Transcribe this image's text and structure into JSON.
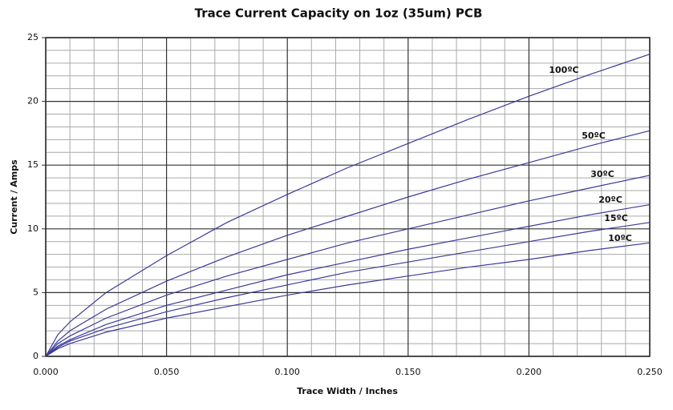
{
  "chart_data": {
    "type": "line",
    "title": "Trace Current Capacity on 1oz (35um) PCB",
    "x_label": "Trace Width / Inches",
    "y_label": "Current  / Amps",
    "x": [
      0,
      0.005,
      0.01,
      0.025,
      0.05,
      0.075,
      0.1,
      0.125,
      0.15,
      0.175,
      0.2,
      0.225,
      0.25
    ],
    "series": [
      {
        "name": "100ºC",
        "color": "#3a3a9a",
        "values": [
          0,
          1.7,
          2.7,
          5.0,
          7.9,
          10.5,
          12.7,
          14.8,
          16.7,
          18.6,
          20.4,
          22.1,
          23.7
        ]
      },
      {
        "name": "50ºC",
        "color": "#3a3a9a",
        "values": [
          0,
          1.2,
          2.0,
          3.7,
          5.9,
          7.8,
          9.5,
          11.0,
          12.5,
          13.9,
          15.2,
          16.5,
          17.7
        ]
      },
      {
        "name": "30ºC",
        "color": "#3a3a9a",
        "values": [
          0,
          1.0,
          1.6,
          3.0,
          4.8,
          6.3,
          7.6,
          8.9,
          10.0,
          11.1,
          12.2,
          13.2,
          14.2
        ]
      },
      {
        "name": "20ºC",
        "color": "#3a3a9a",
        "values": [
          0,
          0.8,
          1.3,
          2.5,
          4.0,
          5.2,
          6.4,
          7.4,
          8.4,
          9.3,
          10.2,
          11.1,
          11.9
        ]
      },
      {
        "name": "15ºC",
        "color": "#3a3a9a",
        "values": [
          0,
          0.7,
          1.2,
          2.2,
          3.5,
          4.6,
          5.6,
          6.6,
          7.4,
          8.2,
          9.0,
          9.8,
          10.5
        ]
      },
      {
        "name": "10ºC",
        "color": "#3a3a9a",
        "values": [
          0,
          0.6,
          1.0,
          1.9,
          3.0,
          3.9,
          4.8,
          5.6,
          6.3,
          7.0,
          7.6,
          8.3,
          8.9
        ]
      }
    ],
    "xlim": [
      0,
      0.25
    ],
    "ylim": [
      0,
      25
    ],
    "xticks": [
      {
        "value": 0,
        "label": "0.000"
      },
      {
        "value": 0.05,
        "label": "0.050"
      },
      {
        "value": 0.1,
        "label": "0.100"
      },
      {
        "value": 0.15,
        "label": "0.150"
      },
      {
        "value": 0.2,
        "label": "0.200"
      },
      {
        "value": 0.25,
        "label": "0.250"
      }
    ],
    "yticks": [
      0,
      5,
      10,
      15,
      20,
      25
    ],
    "x_minor_ticks": [
      0.01,
      0.02,
      0.03,
      0.04,
      0.06,
      0.07,
      0.08,
      0.09,
      0.11,
      0.12,
      0.13,
      0.14,
      0.16,
      0.17,
      0.18,
      0.19,
      0.21,
      0.22,
      0.23,
      0.24
    ],
    "y_minor_ticks": [
      1,
      2,
      3,
      4,
      6,
      7,
      8,
      9,
      11,
      12,
      13,
      14,
      16,
      17,
      18,
      19,
      21,
      22,
      23,
      24
    ],
    "grid": true
  }
}
